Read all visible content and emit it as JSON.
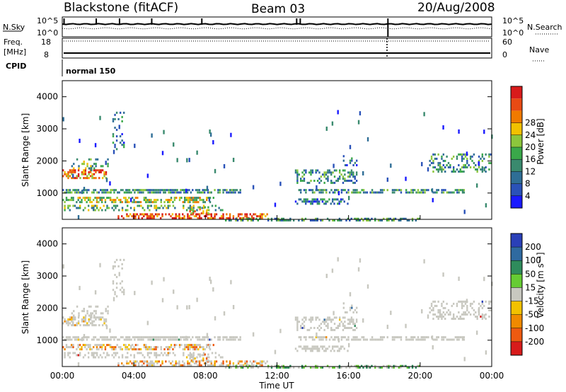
{
  "header": {
    "station": "Blackstone (fitACF)",
    "beam": "Beam 03",
    "date": "20/Aug/2008"
  },
  "time_panel": {
    "nsky_label": "N.Sky",
    "nsky_ticks": [
      "10^5",
      "10^0"
    ],
    "nsearch_label": "N.Search",
    "nsearch_ticks": [
      "10^5",
      "10^0"
    ],
    "freq_label": "Freq.",
    "freq_unit": "[MHz]",
    "freq_ticks": [
      "18",
      "8"
    ],
    "nave_label": "Nave",
    "nave_ticks": [
      "60",
      "0"
    ],
    "cpid_label": "CPID",
    "cpid_value": "normal 150"
  },
  "colors": {
    "power_scale": [
      "#1a1aff",
      "#2a52b8",
      "#2f6e96",
      "#3a8a6e",
      "#3aa84a",
      "#8cc63c",
      "#f2c100",
      "#f07a00",
      "#e84a14",
      "#d81b1b"
    ],
    "velocity_scale": [
      "#2a40b8",
      "#2f6aa0",
      "#2f8c5c",
      "#66cc33",
      "#c8c8c0",
      "#f2c100",
      "#f08a00",
      "#ee5a10",
      "#d81b1b"
    ],
    "gray_scatter": "#c8c8c0"
  },
  "chart_data": [
    {
      "type": "heatmap",
      "title": "",
      "ylabel": "Slant Range [km]",
      "xlabel": "",
      "x_ticks": [
        "00:00",
        "04:00",
        "08:00",
        "12:00",
        "16:00",
        "20:00",
        "00:00"
      ],
      "x_range_hours": [
        0,
        24
      ],
      "ylim": [
        180,
        4500
      ],
      "y_ticks": [
        1000,
        2000,
        3000,
        4000
      ],
      "colorbar": {
        "label": "Power [dB]",
        "ticks": [
          "4",
          "8",
          "12",
          "16",
          "20",
          "24",
          "28"
        ]
      }
    },
    {
      "type": "heatmap",
      "title": "",
      "ylabel": "Slant Range [km]",
      "xlabel": "Time UT",
      "x_ticks": [
        "00:00",
        "04:00",
        "08:00",
        "12:00",
        "16:00",
        "20:00",
        "00:00"
      ],
      "x_range_hours": [
        0,
        24
      ],
      "ylim": [
        180,
        4500
      ],
      "y_ticks": [
        1000,
        2000,
        3000,
        4000
      ],
      "colorbar": {
        "label": "Velocity [m s⁻¹]",
        "ticks": [
          "200",
          "100",
          "50",
          "15",
          "-15",
          "-50",
          "-100",
          "-200"
        ]
      }
    }
  ]
}
